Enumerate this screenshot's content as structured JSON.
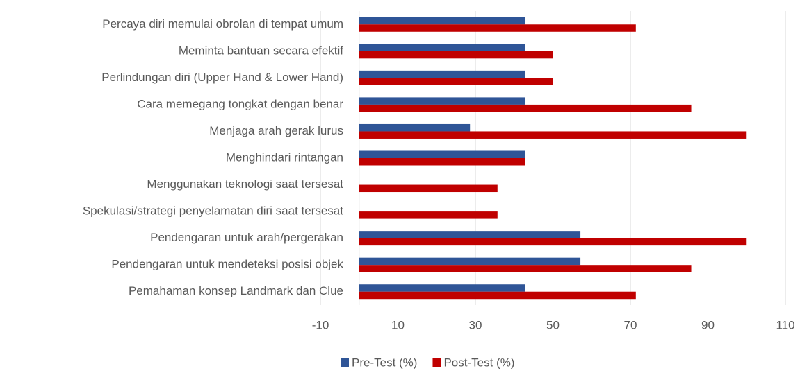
{
  "chart_data": {
    "type": "hbar",
    "categories": [
      "Percaya diri memulai obrolan di tempat umum",
      "Meminta bantuan secara efektif",
      "Perlindungan diri (Upper Hand & Lower Hand)",
      "Cara memegang tongkat dengan benar",
      "Menjaga arah gerak lurus",
      "Menghindari rintangan",
      "Menggunakan teknologi saat tersesat",
      "Spekulasi/strategi penyelamatan diri saat tersesat",
      "Pendengaran untuk arah/pergerakan",
      "Pendengaran untuk mendeteksi posisi objek",
      "Pemahaman konsep Landmark dan Clue"
    ],
    "series": [
      {
        "name": "Pre-Test (%)",
        "color": "#2f5597",
        "values": [
          42.9,
          42.9,
          42.9,
          42.9,
          28.6,
          42.9,
          0,
          0,
          57.1,
          57.1,
          42.9
        ]
      },
      {
        "name": "Post-Test (%)",
        "color": "#c00000",
        "values": [
          71.4,
          50,
          50,
          85.7,
          100,
          42.9,
          35.7,
          35.7,
          100,
          85.7,
          71.4
        ]
      }
    ],
    "xlim": [
      -10,
      110
    ],
    "xticks": [
      -10,
      10,
      30,
      50,
      70,
      90,
      110
    ],
    "grid": true,
    "legend": "bottom"
  }
}
